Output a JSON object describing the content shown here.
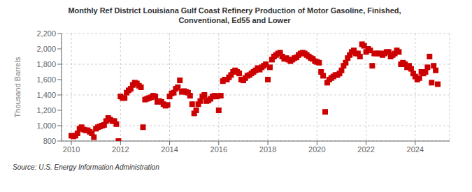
{
  "chart_data": {
    "type": "scatter",
    "title": "Monthly Ref District Louisiana Gulf Coast Refinery Production of Motor Gasoline, Finished,\nConventional, Ed55 and Lower",
    "y_label": "Thousand Barrels",
    "annotations": [
      "Source: U.S. Energy Information Administration"
    ],
    "color": "#cc0000",
    "marker": "square",
    "grid": true,
    "xlim": [
      2009.6,
      2025.4
    ],
    "xticks": [
      2010,
      2012,
      2014,
      2016,
      2018,
      2020,
      2022,
      2024
    ],
    "ylim": [
      800,
      2200
    ],
    "yticks": [
      800,
      {
        "value": 1000,
        "label": "1,000"
      },
      {
        "value": 1200,
        "label": "1,200"
      },
      {
        "value": 1400,
        "label": "1,400"
      },
      {
        "value": 1600,
        "label": "1,600"
      },
      {
        "value": 1800,
        "label": "1,800"
      },
      {
        "value": 2000,
        "label": "2,000"
      },
      {
        "value": 2200,
        "label": "2,200"
      }
    ],
    "x": [
      2010.0,
      2010.083,
      2010.167,
      2010.25,
      2010.333,
      2010.417,
      2010.5,
      2010.583,
      2010.667,
      2010.75,
      2010.833,
      2010.917,
      2011.0,
      2011.083,
      2011.167,
      2011.25,
      2011.333,
      2011.417,
      2011.5,
      2011.583,
      2011.667,
      2011.75,
      2011.833,
      2011.917,
      2012.0,
      2012.083,
      2012.167,
      2012.25,
      2012.333,
      2012.417,
      2012.5,
      2012.583,
      2012.667,
      2012.75,
      2012.833,
      2012.917,
      2013.0,
      2013.083,
      2013.167,
      2013.25,
      2013.333,
      2013.417,
      2013.5,
      2013.583,
      2013.667,
      2013.75,
      2013.833,
      2013.917,
      2014.0,
      2014.083,
      2014.167,
      2014.25,
      2014.333,
      2014.417,
      2014.5,
      2014.583,
      2014.667,
      2014.75,
      2014.833,
      2014.917,
      2015.0,
      2015.083,
      2015.167,
      2015.25,
      2015.333,
      2015.417,
      2015.5,
      2015.583,
      2015.667,
      2015.75,
      2015.833,
      2015.917,
      2016.0,
      2016.083,
      2016.167,
      2016.25,
      2016.333,
      2016.417,
      2016.5,
      2016.583,
      2016.667,
      2016.75,
      2016.833,
      2016.917,
      2017.0,
      2017.083,
      2017.167,
      2017.25,
      2017.333,
      2017.417,
      2017.5,
      2017.583,
      2017.667,
      2017.75,
      2017.833,
      2017.917,
      2018.0,
      2018.083,
      2018.167,
      2018.25,
      2018.333,
      2018.417,
      2018.5,
      2018.583,
      2018.667,
      2018.75,
      2018.833,
      2018.917,
      2019.0,
      2019.083,
      2019.167,
      2019.25,
      2019.333,
      2019.417,
      2019.5,
      2019.583,
      2019.667,
      2019.75,
      2019.833,
      2019.917,
      2020.0,
      2020.083,
      2020.167,
      2020.25,
      2020.333,
      2020.417,
      2020.5,
      2020.583,
      2020.667,
      2020.75,
      2020.833,
      2020.917,
      2021.0,
      2021.083,
      2021.167,
      2021.25,
      2021.333,
      2021.417,
      2021.5,
      2021.583,
      2021.667,
      2021.75,
      2021.833,
      2021.917,
      2022.0,
      2022.083,
      2022.167,
      2022.25,
      2022.333,
      2022.417,
      2022.5,
      2022.583,
      2022.667,
      2022.75,
      2022.833,
      2022.917,
      2023.0,
      2023.083,
      2023.167,
      2023.25,
      2023.333,
      2023.417,
      2023.5,
      2023.583,
      2023.667,
      2023.75,
      2023.833,
      2023.917,
      2024.0,
      2024.083,
      2024.167,
      2024.25,
      2024.333,
      2024.417,
      2024.5,
      2024.583,
      2024.667,
      2024.75,
      2024.833,
      2024.917
    ],
    "values": [
      870,
      860,
      870,
      900,
      960,
      980,
      950,
      940,
      940,
      920,
      900,
      850,
      960,
      980,
      990,
      1000,
      1010,
      1060,
      1100,
      1080,
      1060,
      1060,
      1020,
      800,
      1380,
      1360,
      1360,
      1430,
      1460,
      1480,
      1530,
      1560,
      1550,
      1520,
      1500,
      980,
      1340,
      1350,
      1360,
      1370,
      1390,
      1380,
      1310,
      1320,
      1310,
      1280,
      1260,
      1270,
      1380,
      1420,
      1430,
      1480,
      1500,
      1590,
      1440,
      1450,
      1440,
      1430,
      1390,
      1280,
      1160,
      1200,
      1280,
      1320,
      1380,
      1400,
      1320,
      1330,
      1350,
      1380,
      1390,
      1380,
      1200,
      1390,
      1580,
      1600,
      1600,
      1630,
      1660,
      1700,
      1720,
      1700,
      1680,
      1600,
      1590,
      1620,
      1650,
      1660,
      1680,
      1700,
      1720,
      1750,
      1730,
      1760,
      1780,
      1800,
      1600,
      1760,
      1860,
      1900,
      1920,
      1940,
      1950,
      1900,
      1870,
      1880,
      1860,
      1840,
      1860,
      1880,
      1890,
      1920,
      1940,
      1950,
      1940,
      1920,
      1900,
      1880,
      1870,
      1840,
      1830,
      1820,
      1700,
      1650,
      1180,
      1560,
      1600,
      1620,
      1640,
      1660,
      1660,
      1680,
      1720,
      1780,
      1820,
      1880,
      1920,
      1960,
      1980,
      1940,
      1940,
      1900,
      2060,
      2040,
      1960,
      2000,
      1980,
      1780,
      1940,
      1940,
      1940,
      1940,
      1920,
      1940,
      1960,
      1960,
      1900,
      1920,
      1940,
      1980,
      1960,
      1800,
      1820,
      1800,
      1760,
      1780,
      1740,
      1680,
      1640,
      1600,
      1620,
      1700,
      1680,
      1700,
      1760,
      1900,
      1560,
      1780,
      1720,
      1540
    ]
  }
}
